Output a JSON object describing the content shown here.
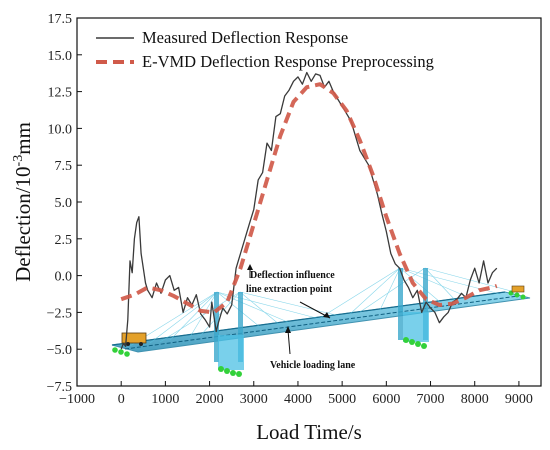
{
  "chart_data": {
    "type": "line",
    "xlabel": "Load Time/s",
    "ylabel_main": "Deflection/10",
    "ylabel_sup": "-3",
    "ylabel_unit": "mm",
    "xlim": [
      -1000,
      9500
    ],
    "ylim": [
      -7.5,
      17.5
    ],
    "xticks": [
      -1000,
      0,
      1000,
      2000,
      3000,
      4000,
      5000,
      6000,
      7000,
      8000,
      9000
    ],
    "yticks": [
      -7.5,
      -5.0,
      -2.5,
      0.0,
      2.5,
      5.0,
      7.5,
      10.0,
      12.5,
      15.0,
      17.5
    ],
    "xtick_labels": [
      "−1000",
      "0",
      "1000",
      "2000",
      "3000",
      "4000",
      "5000",
      "6000",
      "7000",
      "8000",
      "9000"
    ],
    "ytick_labels": [
      "−7.5",
      "−5.0",
      "−2.5",
      "0.0",
      "2.5",
      "5.0",
      "7.5",
      "10.0",
      "12.5",
      "15.0",
      "17.5"
    ],
    "legend_position": "top-left",
    "grid": false,
    "series": [
      {
        "name": "Measured Deflection Response",
        "color": "#3a3a3a",
        "style": "solid",
        "x": [
          0,
          50,
          100,
          150,
          200,
          250,
          300,
          350,
          400,
          450,
          500,
          550,
          600,
          700,
          800,
          900,
          1000,
          1100,
          1200,
          1300,
          1400,
          1500,
          1600,
          1700,
          1800,
          1900,
          2000,
          2050,
          2100,
          2150,
          2200,
          2300,
          2400,
          2500,
          2600,
          2700,
          2800,
          2900,
          3000,
          3100,
          3200,
          3300,
          3400,
          3500,
          3600,
          3700,
          3800,
          3900,
          4000,
          4100,
          4200,
          4300,
          4400,
          4500,
          4600,
          4700,
          4800,
          4900,
          5000,
          5100,
          5200,
          5300,
          5400,
          5500,
          5600,
          5700,
          5800,
          5900,
          6000,
          6100,
          6200,
          6300,
          6400,
          6500,
          6600,
          6700,
          6800,
          6900,
          7000,
          7100,
          7200,
          7300,
          7400,
          7500,
          7600,
          7700,
          7800,
          7900,
          8000,
          8100,
          8200,
          8300,
          8400,
          8500
        ],
        "y": [
          -5.0,
          -4.6,
          -4.8,
          -3.0,
          1.0,
          0.2,
          2.5,
          3.6,
          4.0,
          1.5,
          0.5,
          -0.5,
          -1.0,
          -1.5,
          -0.5,
          -1.2,
          -0.3,
          0.0,
          -1.0,
          -0.8,
          -2.5,
          -1.5,
          -2.0,
          -1.3,
          -2.6,
          -3.0,
          -3.5,
          -1.8,
          -2.8,
          -3.8,
          -3.2,
          -2.2,
          -2.6,
          -2.0,
          0.5,
          1.5,
          2.5,
          3.5,
          4.5,
          6.5,
          7.0,
          9.0,
          8.5,
          10.8,
          11.0,
          12.2,
          12.6,
          13.2,
          13.5,
          13.0,
          13.8,
          13.2,
          13.7,
          13.6,
          12.8,
          13.2,
          12.5,
          12.0,
          11.5,
          11.0,
          10.5,
          9.5,
          8.5,
          8.0,
          7.5,
          6.5,
          5.5,
          4.2,
          3.0,
          1.5,
          0.8,
          0.5,
          -0.3,
          -0.8,
          -1.5,
          -1.0,
          -2.5,
          -1.8,
          -2.2,
          -2.5,
          -3.2,
          -2.8,
          -2.5,
          -1.8,
          -1.6,
          -1.2,
          -1.5,
          -0.3,
          0.5,
          -0.5,
          1.0,
          -0.5,
          0.2,
          0.5
        ]
      },
      {
        "name": "E-VMD Deflection Response Preprocessing",
        "color": "#d05a4a",
        "style": "dashed",
        "x": [
          0,
          300,
          600,
          900,
          1200,
          1500,
          1800,
          2100,
          2400,
          2700,
          3000,
          3300,
          3600,
          3900,
          4200,
          4500,
          4800,
          5100,
          5400,
          5700,
          6000,
          6300,
          6600,
          6900,
          7200,
          7500,
          7800,
          8100,
          8400,
          8500
        ],
        "y": [
          -1.6,
          -1.3,
          -0.8,
          -1.0,
          -1.4,
          -1.9,
          -2.4,
          -2.5,
          -1.8,
          0.5,
          3.5,
          6.5,
          9.5,
          11.8,
          12.8,
          13.0,
          12.4,
          11.2,
          9.2,
          6.8,
          4.0,
          1.5,
          -0.5,
          -1.6,
          -2.0,
          -1.9,
          -1.5,
          -1.0,
          -0.8,
          -0.7
        ]
      }
    ],
    "annotations": {
      "extraction_line1": "Deflection influence",
      "extraction_line2": "line extraction point",
      "loading_lane": "Vehicle loading lane"
    }
  }
}
